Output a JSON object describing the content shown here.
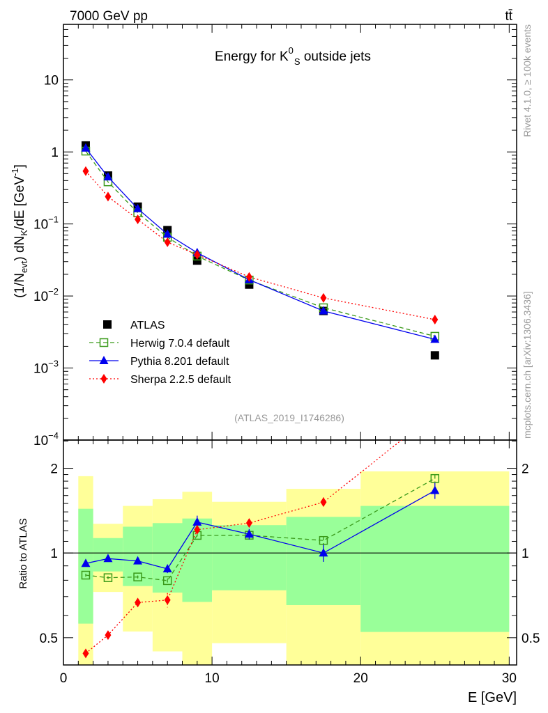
{
  "header": {
    "energy": "7000 GeV pp",
    "process": "tt̄"
  },
  "side": {
    "rivet": "Rivet 4.1.0, ≥ 100k events",
    "mcplots": "mcplots.cern.ch [arXiv:1306.3436]"
  },
  "chart_data": [
    {
      "type": "scatter",
      "title_main": "Energy for K",
      "title_sup": "0",
      "title_sub": "S",
      "title_rest": " outside jets",
      "ylabel": "(1/N_evt) dN_K/dE [GeV^-1]",
      "ylabel_parts": {
        "a": "(1/N",
        "b": "evt",
        "c": ") dN",
        "d": "K",
        "e": "/dE [GeV",
        "f": "-1",
        "g": "]"
      },
      "yscale": "log",
      "ylim": [
        0.0001,
        59
      ],
      "ytick_labels": [
        {
          "v": 10,
          "t": "10"
        },
        {
          "v": 1,
          "t": "1"
        },
        {
          "v": 0.1,
          "t": "10",
          "e": "−1"
        },
        {
          "v": 0.01,
          "t": "10",
          "e": "−2"
        },
        {
          "v": 0.001,
          "t": "10",
          "e": "−3"
        },
        {
          "v": 0.0001,
          "t": "10",
          "e": "−4"
        }
      ],
      "x": [
        1.5,
        3,
        5,
        7,
        9,
        12.5,
        17.5,
        25
      ],
      "series": [
        {
          "name": "ATLAS",
          "color": "#000000",
          "marker": "square",
          "values": [
            1.23,
            0.47,
            0.174,
            0.082,
            0.031,
            0.0144,
            0.0062,
            0.0015
          ]
        },
        {
          "name": "Herwig 7.0.4 default",
          "color": "#3a9a1a",
          "marker": "open-square",
          "dash": "6,4",
          "values": [
            1.026,
            0.384,
            0.143,
            0.0654,
            0.0358,
            0.01665,
            0.00687,
            0.00276
          ]
        },
        {
          "name": "Pythia 8.201 default",
          "color": "#0000ee",
          "marker": "triangle",
          "dash": "",
          "values": [
            1.129,
            0.449,
            0.163,
            0.072,
            0.0399,
            0.0168,
            0.0062,
            0.0025
          ]
        },
        {
          "name": "Sherpa 2.2.5 default",
          "color": "#ff0000",
          "marker": "diamond",
          "dash": "2,3",
          "values": [
            0.541,
            0.24,
            0.116,
            0.0558,
            0.0375,
            0.0184,
            0.0094,
            0.0047
          ]
        }
      ],
      "annotation": "(ATLAS_2019_I1746286)",
      "legend": "middle-left"
    },
    {
      "type": "scatter",
      "ylabel": "Ratio to ATLAS",
      "yscale": "log",
      "ylim": [
        0.4,
        2.52
      ],
      "ytick_labels": [
        {
          "v": 2,
          "t": "2"
        },
        {
          "v": 1,
          "t": "1"
        },
        {
          "v": 0.5,
          "t": "0.5"
        }
      ],
      "xlabel": "E [GeV]",
      "xlim": [
        0,
        30.5
      ],
      "xtick_labels": [
        "0",
        "10",
        "20",
        "30"
      ],
      "bins": [
        1,
        2,
        4,
        6,
        8,
        10,
        15,
        20,
        30
      ],
      "band_1sigma": {
        "lo": [
          0.561,
          0.86,
          0.763,
          0.723,
          0.67,
          0.737,
          0.653,
          0.524
        ],
        "hi": [
          1.436,
          1.13,
          1.24,
          1.277,
          1.326,
          1.256,
          1.344,
          1.47
        ]
      },
      "band_2sigma": {
        "lo": [
          0.3,
          0.727,
          0.526,
          0.447,
          0.3,
          0.478,
          0.3,
          0.3
        ],
        "hi": [
          1.875,
          1.27,
          1.47,
          1.553,
          1.65,
          1.52,
          1.69,
          1.95
        ]
      },
      "band_colors": {
        "inner": "#99ff99",
        "outer": "#ffff99"
      },
      "ratio_errors": [
        [
          0.01,
          0.01,
          0.01,
          0.015,
          0.03,
          0.03,
          0.04,
          0.06
        ],
        [
          0.01,
          0.01,
          0.015,
          0.03,
          0.07,
          0.05,
          0.07,
          0.11
        ],
        [
          0.01,
          0.01,
          0.02,
          0.04,
          0.04,
          0.04,
          0.06,
          0.1
        ]
      ]
    }
  ]
}
